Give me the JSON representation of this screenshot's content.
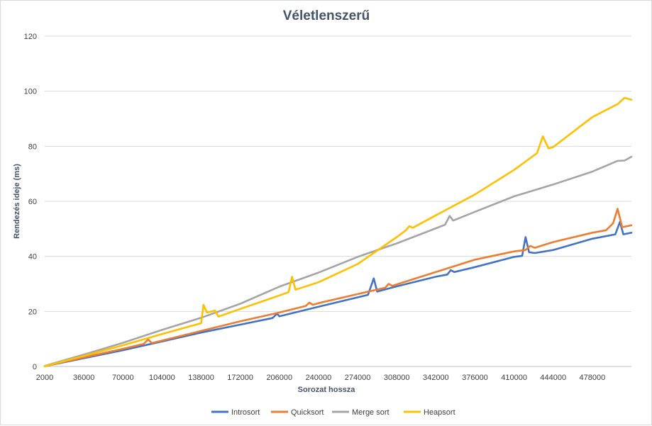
{
  "chart_data": {
    "type": "line",
    "title": "Véletlenszerű",
    "xlabel": "Sorozat hossza",
    "ylabel": "Rendezés ideje (ms)",
    "xlim": [
      2000,
      512000
    ],
    "ylim": [
      0,
      120
    ],
    "y_ticks": [
      0,
      20,
      40,
      60,
      80,
      100,
      120
    ],
    "x_ticks": [
      2000,
      36000,
      70000,
      104000,
      138000,
      172000,
      206000,
      240000,
      274000,
      308000,
      342000,
      376000,
      410000,
      444000,
      478000
    ],
    "grid": "horizontal",
    "legend_position": "bottom",
    "series": [
      {
        "name": "Introsort",
        "color": "#4472c4",
        "points": [
          [
            2000,
            0.1
          ],
          [
            36000,
            3.0
          ],
          [
            70000,
            5.9
          ],
          [
            104000,
            9.1
          ],
          [
            138000,
            12.3
          ],
          [
            172000,
            15.2
          ],
          [
            200000,
            17.6
          ],
          [
            204000,
            19.2
          ],
          [
            206000,
            18.2
          ],
          [
            240000,
            21.7
          ],
          [
            274000,
            25.1
          ],
          [
            283000,
            26.0
          ],
          [
            288000,
            32.0
          ],
          [
            291000,
            27.2
          ],
          [
            308000,
            29.1
          ],
          [
            342000,
            32.6
          ],
          [
            352000,
            33.4
          ],
          [
            355000,
            35.0
          ],
          [
            358000,
            34.3
          ],
          [
            376000,
            36.1
          ],
          [
            410000,
            39.8
          ],
          [
            417000,
            40.2
          ],
          [
            420000,
            47.0
          ],
          [
            423000,
            41.5
          ],
          [
            428000,
            41.2
          ],
          [
            444000,
            42.3
          ],
          [
            478000,
            46.4
          ],
          [
            498000,
            48.0
          ],
          [
            502000,
            52.5
          ],
          [
            505000,
            48.0
          ],
          [
            512000,
            48.6
          ]
        ]
      },
      {
        "name": "Quicksort",
        "color": "#ed7d31",
        "points": [
          [
            2000,
            0.1
          ],
          [
            36000,
            3.3
          ],
          [
            70000,
            6.4
          ],
          [
            88000,
            8.2
          ],
          [
            92000,
            9.8
          ],
          [
            95000,
            8.5
          ],
          [
            104000,
            9.4
          ],
          [
            138000,
            12.9
          ],
          [
            172000,
            16.4
          ],
          [
            206000,
            19.6
          ],
          [
            229000,
            22.0
          ],
          [
            232000,
            23.2
          ],
          [
            235000,
            22.4
          ],
          [
            240000,
            23.0
          ],
          [
            274000,
            26.3
          ],
          [
            298000,
            28.6
          ],
          [
            301000,
            30.0
          ],
          [
            304000,
            29.3
          ],
          [
            308000,
            29.8
          ],
          [
            342000,
            34.3
          ],
          [
            376000,
            38.8
          ],
          [
            410000,
            41.8
          ],
          [
            420000,
            42.3
          ],
          [
            424000,
            43.8
          ],
          [
            428000,
            43.1
          ],
          [
            444000,
            45.2
          ],
          [
            478000,
            48.6
          ],
          [
            490000,
            49.5
          ],
          [
            496000,
            52.0
          ],
          [
            500000,
            57.3
          ],
          [
            504000,
            50.6
          ],
          [
            512000,
            51.3
          ]
        ]
      },
      {
        "name": "Merge sort",
        "color": "#a5a5a5",
        "points": [
          [
            2000,
            0.2
          ],
          [
            36000,
            4.3
          ],
          [
            70000,
            8.6
          ],
          [
            104000,
            13.3
          ],
          [
            138000,
            17.7
          ],
          [
            172000,
            22.8
          ],
          [
            206000,
            29.0
          ],
          [
            240000,
            34.1
          ],
          [
            274000,
            39.8
          ],
          [
            308000,
            44.7
          ],
          [
            342000,
            50.2
          ],
          [
            350000,
            51.5
          ],
          [
            354000,
            54.7
          ],
          [
            357000,
            53.0
          ],
          [
            376000,
            56.2
          ],
          [
            410000,
            61.8
          ],
          [
            444000,
            66.1
          ],
          [
            478000,
            70.8
          ],
          [
            500000,
            74.7
          ],
          [
            506000,
            74.8
          ],
          [
            512000,
            76.2
          ]
        ]
      },
      {
        "name": "Heapsort",
        "color": "#ffc000",
        "points": [
          [
            2000,
            0.1
          ],
          [
            36000,
            3.8
          ],
          [
            70000,
            7.7
          ],
          [
            104000,
            11.8
          ],
          [
            138000,
            15.7
          ],
          [
            140000,
            22.4
          ],
          [
            143000,
            19.6
          ],
          [
            150000,
            20.3
          ],
          [
            153000,
            18.1
          ],
          [
            172000,
            20.9
          ],
          [
            206000,
            25.8
          ],
          [
            214000,
            27.0
          ],
          [
            217000,
            32.6
          ],
          [
            220000,
            27.9
          ],
          [
            240000,
            30.6
          ],
          [
            274000,
            37.2
          ],
          [
            308000,
            47.0
          ],
          [
            316000,
            49.5
          ],
          [
            319000,
            51.0
          ],
          [
            322000,
            50.4
          ],
          [
            342000,
            54.9
          ],
          [
            376000,
            62.5
          ],
          [
            410000,
            71.4
          ],
          [
            430000,
            77.5
          ],
          [
            435000,
            83.6
          ],
          [
            440000,
            79.2
          ],
          [
            444000,
            79.7
          ],
          [
            478000,
            90.6
          ],
          [
            500000,
            95.3
          ],
          [
            506000,
            97.6
          ],
          [
            512000,
            96.9
          ]
        ]
      }
    ]
  }
}
